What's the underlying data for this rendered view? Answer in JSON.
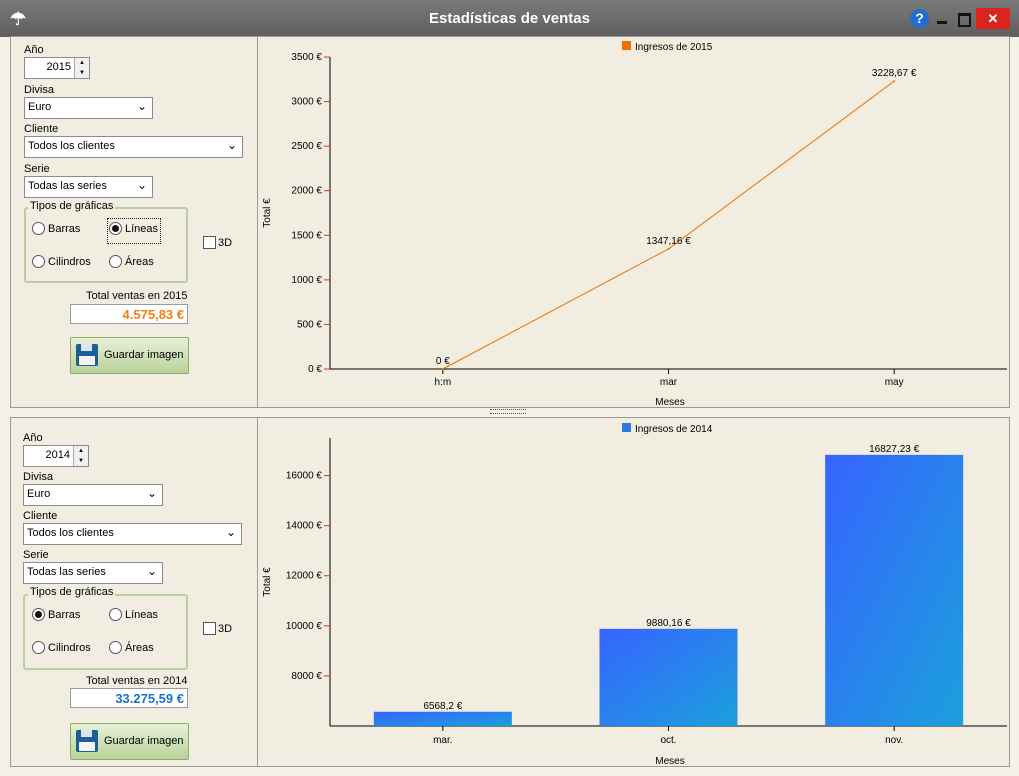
{
  "window": {
    "title": "Estadísticas de ventas",
    "help": "?",
    "close": "✕"
  },
  "top": {
    "year_label": "Año",
    "year_value": "2015",
    "currency_label": "Divisa",
    "currency_value": "Euro",
    "client_label": "Cliente",
    "client_value": "Todos los clientes",
    "series_label": "Serie",
    "series_value": "Todas las series",
    "chart_types_label": "Tipos de gráficas",
    "opt_bars": "Barras",
    "opt_lines": "Líneas",
    "opt_cylinders": "Cilindros",
    "opt_areas": "Áreas",
    "selected_type": "lines",
    "opt_3d": "3D",
    "total_label": "Total ventas en 2015",
    "total_value": "4.575,83 €",
    "total_color": "#f07f17",
    "save_label": "Guardar imagen"
  },
  "bottom": {
    "year_label": "Año",
    "year_value": "2014",
    "currency_label": "Divisa",
    "currency_value": "Euro",
    "client_label": "Cliente",
    "client_value": "Todos los clientes",
    "series_label": "Serie",
    "series_value": "Todas las series",
    "chart_types_label": "Tipos de gráficas",
    "opt_bars": "Barras",
    "opt_lines": "Líneas",
    "opt_cylinders": "Cilindros",
    "opt_areas": "Áreas",
    "selected_type": "bars",
    "opt_3d": "3D",
    "total_label": "Total ventas en 2014",
    "total_value": "33.275,59 €",
    "total_color": "#1c74c8",
    "save_label": "Guardar imagen"
  },
  "chart_data": [
    {
      "type": "line",
      "legend": "Ingresos de 2015",
      "legend_color": "#f26f00",
      "categories": [
        "h:m",
        "mar",
        "may"
      ],
      "values": [
        0,
        1347.16,
        3228.67
      ],
      "value_labels": [
        "0 €",
        "1347,16 €",
        "3228,67 €"
      ],
      "yticks": [
        "0 €",
        "500 €",
        "1000 €",
        "1500 €",
        "2000 €",
        "2500 €",
        "3000 €",
        "3500 €"
      ],
      "ylim": [
        0,
        3500
      ],
      "xlabel": "Meses",
      "ylabel": "Total €"
    },
    {
      "type": "bar",
      "legend": "Ingresos de 2014",
      "legend_color": "#2e7be0",
      "categories": [
        "mar.",
        "oct.",
        "nov."
      ],
      "values": [
        6568.2,
        9880.16,
        16827.23
      ],
      "value_labels": [
        "6568,2 €",
        "9880,16 €",
        "16827,23 €"
      ],
      "yticks": [
        "8000 €",
        "10000 €",
        "12000 €",
        "14000 €",
        "16000 €"
      ],
      "ytick_values": [
        8000,
        10000,
        12000,
        14000,
        16000
      ],
      "ylim": [
        6000,
        17500
      ],
      "xlabel": "Meses",
      "ylabel": "Total €"
    }
  ]
}
